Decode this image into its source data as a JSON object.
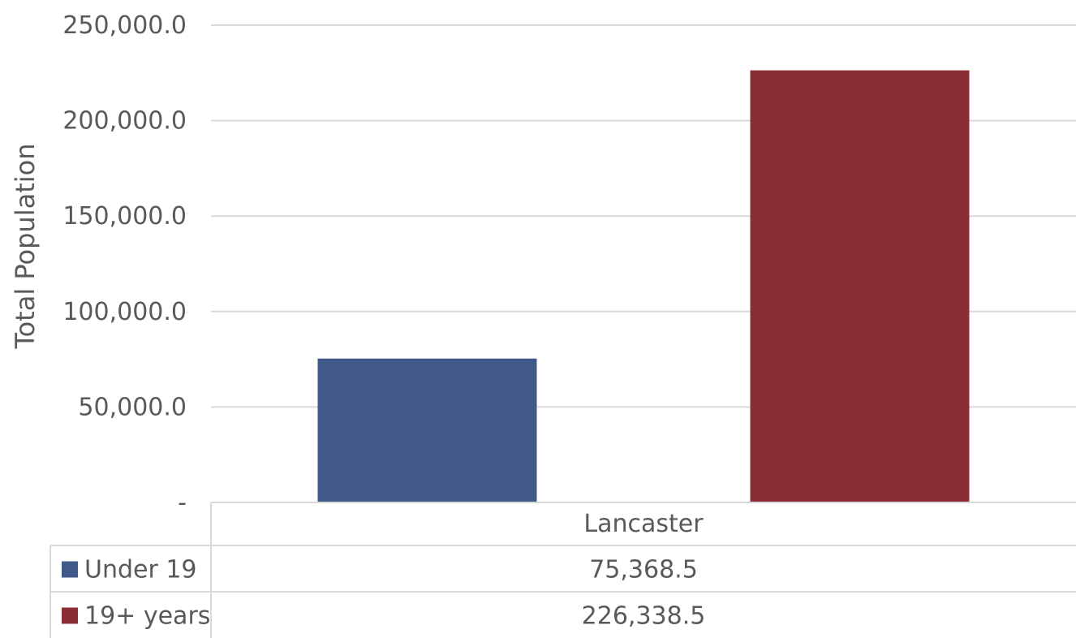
{
  "chart_data": {
    "type": "bar",
    "categories": [
      "Lancaster"
    ],
    "series": [
      {
        "name": "Under 19",
        "values": [
          75368.5
        ],
        "color": "#405989",
        "value_label": "75,368.5"
      },
      {
        "name": "19+ years",
        "values": [
          226338.5
        ],
        "color": "#8a2d35",
        "value_label": "226,338.5"
      }
    ],
    "ylabel": "Total Population",
    "xlabel": "",
    "ylim": [
      0,
      250000
    ],
    "yticks": [
      {
        "value": 0,
        "label": "-"
      },
      {
        "value": 50000,
        "label": "50,000.0"
      },
      {
        "value": 100000,
        "label": "100,000.0"
      },
      {
        "value": 150000,
        "label": "150,000.0"
      },
      {
        "value": 200000,
        "label": "200,000.0"
      },
      {
        "value": 250000,
        "label": "250,000.0"
      }
    ],
    "grid": true,
    "legend": "data-table",
    "grid_color": "#d9d9d9"
  }
}
